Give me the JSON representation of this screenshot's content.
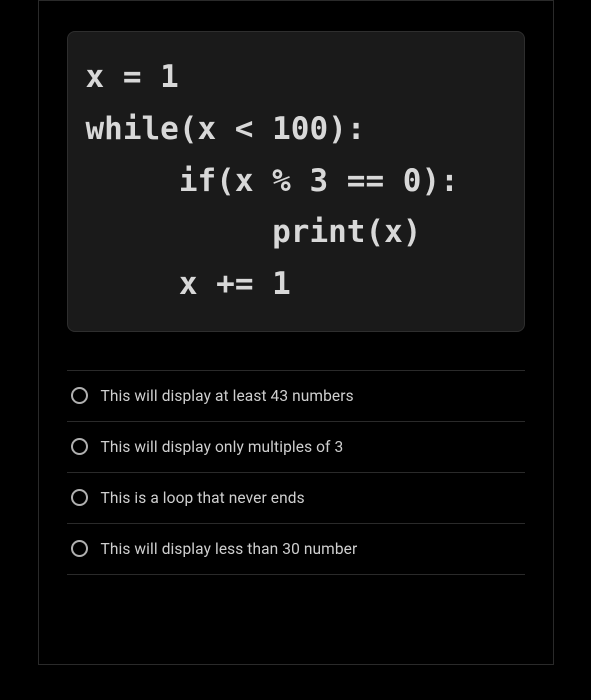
{
  "code_block": {
    "background_color": "#1a1a1a",
    "border_color": "#2e2e2e",
    "text_color": "#d8d8d8",
    "font_family": "monospace",
    "font_size": 31,
    "lines": [
      "x = 1",
      "while(x < 100):",
      "     if(x % 3 == 0):",
      "          print(x)",
      "     x += 1"
    ]
  },
  "options": [
    {
      "label": "This will display at least 43 numbers"
    },
    {
      "label": "This will display only multiples of 3"
    },
    {
      "label": "This is a loop that never ends"
    },
    {
      "label": "This will display less than 30 number"
    }
  ],
  "colors": {
    "page_background": "#000000",
    "card_border": "#2a2a2a",
    "divider": "#2a2a2a",
    "option_text": "#cfcfcf",
    "radio_border": "#b0b0b0"
  }
}
